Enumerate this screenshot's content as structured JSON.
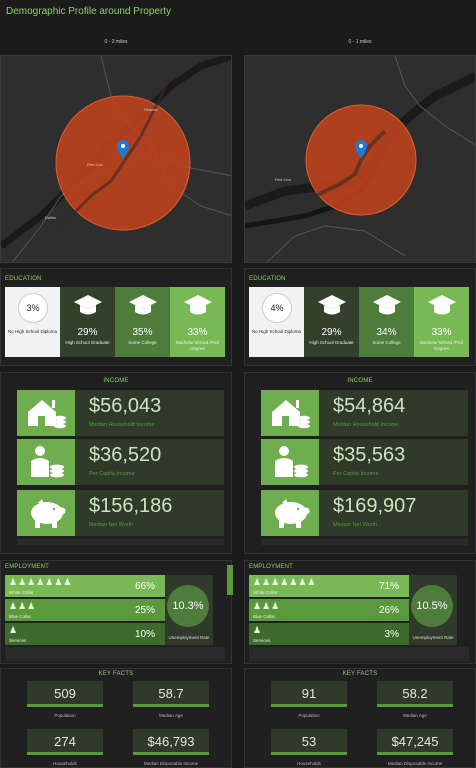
{
  "title": "Demographic Profile around Property",
  "columns": [
    {
      "radius_label": "0 - 3 miles",
      "places": [
        "Hinman",
        "Red Lion",
        "Dallas"
      ],
      "education": {
        "title": "EDUCATION",
        "items": [
          {
            "pct": "3%",
            "label": "No High School Diploma"
          },
          {
            "pct": "29%",
            "label": "High School Graduate"
          },
          {
            "pct": "35%",
            "label": "Some College"
          },
          {
            "pct": "33%",
            "label": "Bachelor's/Grad /Prof Degree"
          }
        ]
      },
      "income": {
        "title": "INCOME",
        "items": [
          {
            "icon": "house-icon",
            "value": "$56,043",
            "label": "Median Household Income"
          },
          {
            "icon": "person-coins-icon",
            "value": "$36,520",
            "label": "Per Capita Income"
          },
          {
            "icon": "piggy-bank-icon",
            "value": "$156,186",
            "label": "Median Net Worth"
          }
        ]
      },
      "employment": {
        "title": "EMPLOYMENT",
        "rows": [
          {
            "label": "White Collar",
            "pct": "66%",
            "icon_count": 7,
            "level": 0.66
          },
          {
            "label": "Blue Collar",
            "pct": "25%",
            "icon_count": 3,
            "level": 0.25
          },
          {
            "label": "Services",
            "pct": "10%",
            "icon_count": 1,
            "level": 0.1
          }
        ],
        "unemployment": "10.3%",
        "unemployment_label": "Unemployment Rate"
      },
      "key_facts": {
        "title": "KEY FACTS",
        "items": [
          {
            "value": "509",
            "label": "Population"
          },
          {
            "value": "58.7",
            "label": "Median Age"
          },
          {
            "value": "274",
            "label": "Households"
          },
          {
            "value": "$46,793",
            "label": "Median Disposable Income"
          }
        ]
      }
    },
    {
      "radius_label": "0 - 1 miles",
      "places": [
        "Red Lion"
      ],
      "education": {
        "title": "EDUCATION",
        "items": [
          {
            "pct": "4%",
            "label": "No High School Diploma"
          },
          {
            "pct": "29%",
            "label": "High School Graduate"
          },
          {
            "pct": "34%",
            "label": "Some College"
          },
          {
            "pct": "33%",
            "label": "Bachelor's/Grad /Prof Degree"
          }
        ]
      },
      "income": {
        "title": "INCOME",
        "items": [
          {
            "icon": "house-icon",
            "value": "$54,864",
            "label": "Median Household Income"
          },
          {
            "icon": "person-coins-icon",
            "value": "$35,563",
            "label": "Per Capita Income"
          },
          {
            "icon": "piggy-bank-icon",
            "value": "$169,907",
            "label": "Median Net Worth"
          }
        ]
      },
      "employment": {
        "title": "EMPLOYMENT",
        "rows": [
          {
            "label": "White Collar",
            "pct": "71%",
            "icon_count": 7,
            "level": 0.71
          },
          {
            "label": "Blue Collar",
            "pct": "26%",
            "icon_count": 3,
            "level": 0.26
          },
          {
            "label": "Services",
            "pct": "3%",
            "icon_count": 1,
            "level": 0.03
          }
        ],
        "unemployment": "10.5%",
        "unemployment_label": "Unemployment Rate"
      },
      "key_facts": {
        "title": "KEY FACTS",
        "items": [
          {
            "value": "91",
            "label": "Population"
          },
          {
            "value": "58.2",
            "label": "Median Age"
          },
          {
            "value": "53",
            "label": "Households"
          },
          {
            "value": "$47,245",
            "label": "Median Disposable Income"
          }
        ]
      }
    }
  ],
  "colors": {
    "accent": "#8fd16a",
    "buffer": "#c0431f",
    "pin": "#1e7ad6"
  }
}
